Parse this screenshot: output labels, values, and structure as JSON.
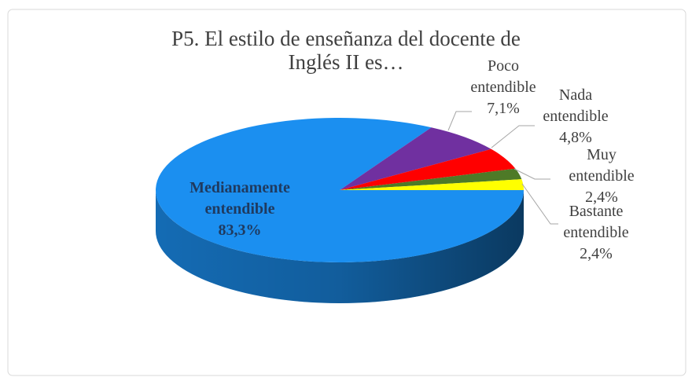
{
  "chart_data": {
    "type": "pie",
    "title": "P5. El estilo de enseñanza del docente de Inglés II es…",
    "categories": [
      "Medianamente entendible",
      "Poco entendible",
      "Nada entendible",
      "Muy entendible",
      "Bastante entendible"
    ],
    "values": [
      83.3,
      7.1,
      4.8,
      2.4,
      2.4
    ],
    "value_labels": [
      "83,3%",
      "7,1%",
      "4,8%",
      "2,4%",
      "2,4%"
    ],
    "colors": [
      "#1b8ff0",
      "#7030a0",
      "#ff0000",
      "#4e7a27",
      "#ffff00"
    ]
  }
}
